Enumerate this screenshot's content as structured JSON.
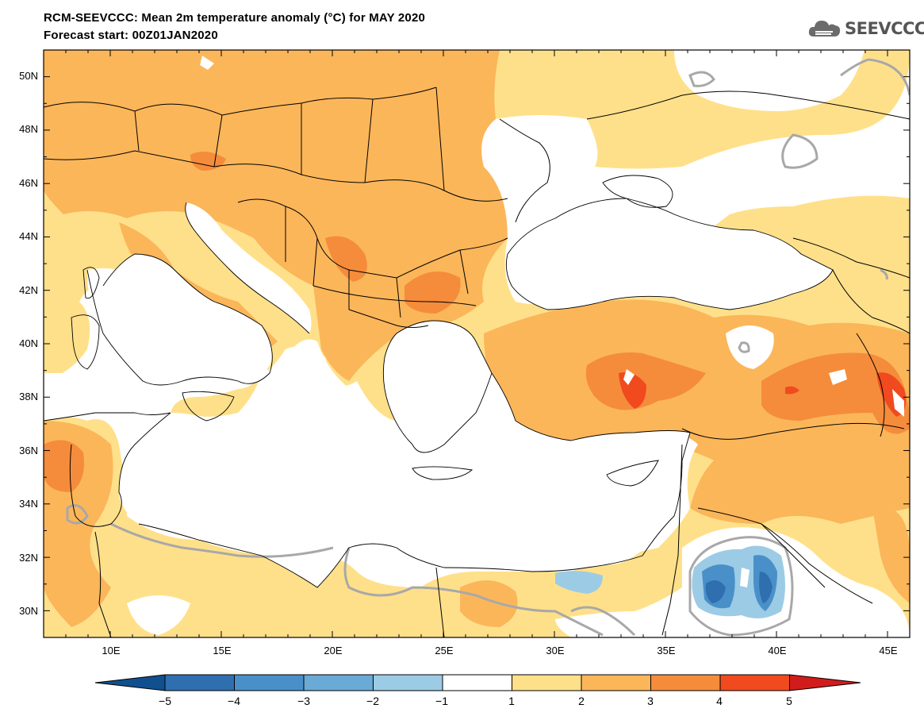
{
  "title": {
    "line1": "RCM-SEEVCCC: Mean 2m temperature anomaly (°C) for MAY 2020",
    "line2": "Forecast start: 00Z01JAN2020"
  },
  "logo": {
    "text": "SEEVCCC",
    "icon": "cloud-icon"
  },
  "map": {
    "lon_range": [
      7,
      46
    ],
    "lat_range": [
      29,
      51
    ],
    "lat_ticks": [
      "50N",
      "48N",
      "46N",
      "44N",
      "42N",
      "40N",
      "38N",
      "36N",
      "34N",
      "32N",
      "30N"
    ],
    "lon_ticks": [
      "10E",
      "15E",
      "20E",
      "25E",
      "30E",
      "35E",
      "40E",
      "45E"
    ],
    "colors": {
      "c_neg5": "#0b4a8b",
      "c_neg4": "#2f6fb0",
      "c_neg3": "#4a90c8",
      "c_neg2": "#6aaad6",
      "c_neg1": "#9ccbe6",
      "c_0": "#ffffff",
      "c_1": "#ffe08a",
      "c_2": "#fbb65a",
      "c_3": "#f58c3b",
      "c_4": "#f04a1e",
      "c_5": "#d21c1c",
      "zero_contour": "#a8a8a8",
      "border": "#000000"
    }
  },
  "colorbar": {
    "labels": [
      "−5",
      "−4",
      "−3",
      "−2",
      "−1",
      "1",
      "2",
      "3",
      "4",
      "5"
    ],
    "colors": [
      "#11508f",
      "#2f6fb0",
      "#4a90c8",
      "#6aaad6",
      "#9ccbe6",
      "#ffffff",
      "#ffe08a",
      "#fbb65a",
      "#f58c3b",
      "#f04a1e",
      "#d21c1c"
    ]
  }
}
